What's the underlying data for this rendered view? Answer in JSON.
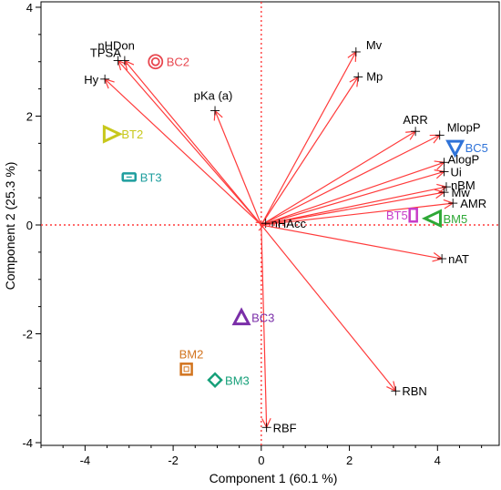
{
  "chart_data": {
    "type": "scatter",
    "subtype": "biplot",
    "title": "",
    "xlabel": "Component 1  (60.1 %)",
    "ylabel": "Component 2  (25.3 %)",
    "xlim": [
      -5.0,
      5.4
    ],
    "ylim": [
      -4.05,
      4.1
    ],
    "x_ticks": [
      -4,
      -2,
      0,
      2,
      4
    ],
    "y_ticks": [
      -4,
      -2,
      0,
      2,
      4
    ],
    "reference_lines": {
      "x": 0,
      "y": 0,
      "color": "#ff3b3b",
      "style": "dotted"
    },
    "loadings_color": "#ff3b3b",
    "loadings": [
      {
        "label": "nHDon",
        "x": -3.25,
        "y": 3.02
      },
      {
        "label": "TPSA",
        "x": -3.1,
        "y": 3.02
      },
      {
        "label": "Hy",
        "x": -3.55,
        "y": 2.68
      },
      {
        "label": "pKa (a)",
        "x": -1.05,
        "y": 2.1
      },
      {
        "label": "Mv",
        "x": 2.15,
        "y": 3.18
      },
      {
        "label": "Mp",
        "x": 2.2,
        "y": 2.72
      },
      {
        "label": "ARR",
        "x": 3.5,
        "y": 1.72
      },
      {
        "label": "MlopP",
        "x": 4.05,
        "y": 1.65
      },
      {
        "label": "AlogP",
        "x": 4.15,
        "y": 1.15
      },
      {
        "label": "Ui",
        "x": 4.15,
        "y": 0.98
      },
      {
        "label": "nBM",
        "x": 4.2,
        "y": 0.7
      },
      {
        "label": "Mw",
        "x": 4.15,
        "y": 0.6
      },
      {
        "label": "AMR",
        "x": 4.35,
        "y": 0.4
      },
      {
        "label": "nHAcc",
        "x": 0.1,
        "y": 0.03
      },
      {
        "label": "nAT",
        "x": 4.1,
        "y": -0.62
      },
      {
        "label": "RBN",
        "x": 3.05,
        "y": -3.05
      },
      {
        "label": "RBF",
        "x": 0.12,
        "y": -3.72
      }
    ],
    "scores": [
      {
        "label": "BC2",
        "x": -2.4,
        "y": 3.0,
        "marker": "double-circle",
        "color": "#e8474f"
      },
      {
        "label": "BT2",
        "x": -3.4,
        "y": 1.67,
        "marker": "triangle-right",
        "color": "#c8c81c"
      },
      {
        "label": "BT3",
        "x": -3.0,
        "y": 0.88,
        "marker": "rounded-rect",
        "color": "#1e9e9e"
      },
      {
        "label": "BC5",
        "x": 4.4,
        "y": 1.42,
        "marker": "triangle-down",
        "color": "#2f73d8"
      },
      {
        "label": "BT5",
        "x": 3.45,
        "y": 0.18,
        "marker": "tall-rect",
        "color": "#c83cc8"
      },
      {
        "label": "BM5",
        "x": 3.9,
        "y": 0.12,
        "marker": "triangle-left",
        "color": "#2ea836"
      },
      {
        "label": "BC3",
        "x": -0.45,
        "y": -1.7,
        "marker": "triangle-up",
        "color": "#7a2ea8"
      },
      {
        "label": "BM2",
        "x": -1.7,
        "y": -2.65,
        "marker": "square",
        "color": "#d2741e"
      },
      {
        "label": "BM3",
        "x": -1.05,
        "y": -2.85,
        "marker": "diamond",
        "color": "#17a07a"
      }
    ],
    "grid": false
  }
}
